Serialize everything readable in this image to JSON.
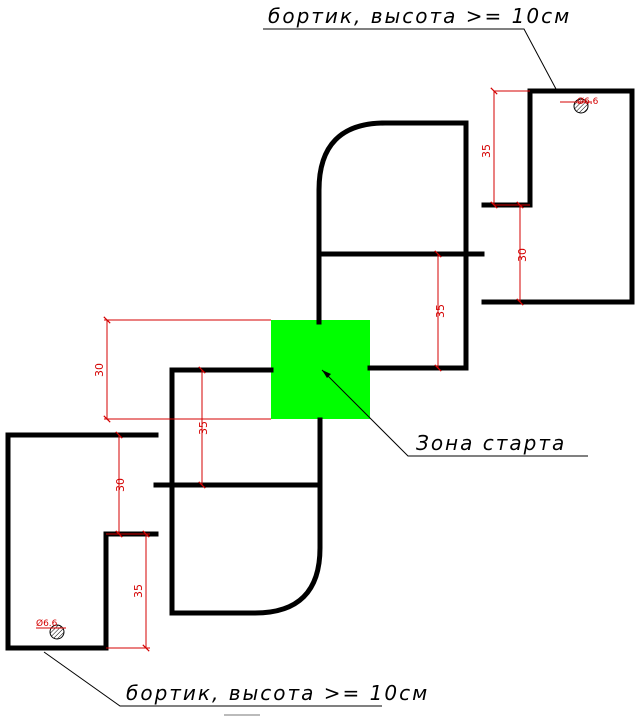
{
  "labels": {
    "rim_top": "бортик, высота >= 10см",
    "rim_bottom": "бортик, высота >= 10см",
    "start_zone": "Зона старта"
  },
  "dimensions": {
    "top_right_35": "35",
    "top_right_30": "30",
    "center_right_35": "35",
    "left_30": "30",
    "center_left_35": "35",
    "bottom_left_30": "30",
    "bottom_left_35": "35"
  },
  "holes": {
    "top": "Ø6.6",
    "bottom": "Ø6.6"
  },
  "colors": {
    "start_zone": "#00ff00",
    "dimension": "#d40000",
    "wall": "#000000"
  }
}
